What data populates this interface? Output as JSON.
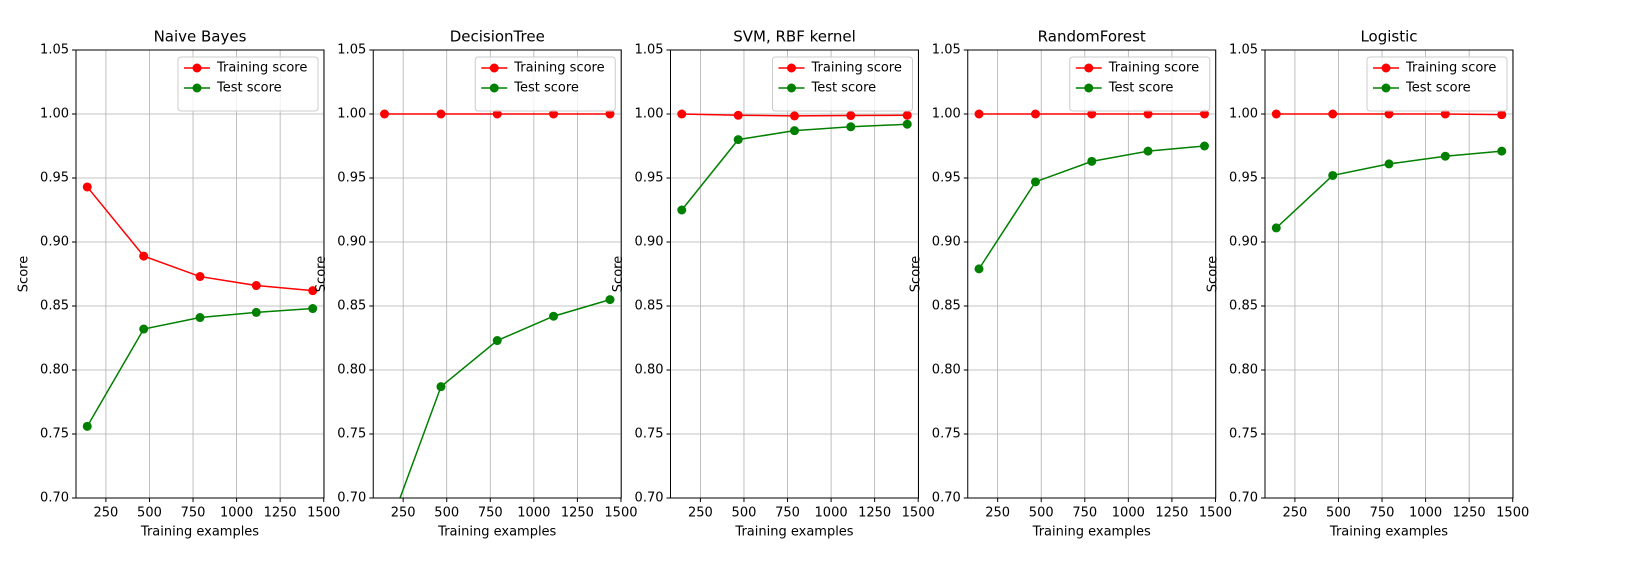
{
  "chart_data": [
    {
      "type": "line",
      "title": "Naive Bayes",
      "xlabel": "Training examples",
      "ylabel": "Score",
      "x": [
        143,
        467,
        790,
        1113,
        1437
      ],
      "series": [
        {
          "name": "Training score",
          "color": "#ff0000",
          "values": [
            0.943,
            0.889,
            0.873,
            0.866,
            0.862
          ]
        },
        {
          "name": "Test score",
          "color": "#008000",
          "values": [
            0.756,
            0.832,
            0.841,
            0.845,
            0.848
          ]
        }
      ],
      "xlim": [
        78.35,
        1501.65
      ],
      "ylim": [
        0.7,
        1.05
      ],
      "xticks": [
        250,
        500,
        750,
        1000,
        1250,
        1500
      ],
      "yticks": [
        {
          "value": 0.7,
          "label": "0.70"
        },
        0.75,
        {
          "value": 0.8,
          "label": "0.80"
        },
        0.85,
        {
          "value": 0.9,
          "label": "0.90"
        },
        0.95,
        {
          "value": 1.0,
          "label": "1.00"
        },
        1.05
      ],
      "grid": true,
      "legend": "upper right"
    },
    {
      "type": "line",
      "title": "DecisionTree",
      "xlabel": "Training examples",
      "ylabel": "Score",
      "x": [
        143,
        467,
        790,
        1113,
        1437
      ],
      "series": [
        {
          "name": "Training score",
          "color": "#ff0000",
          "values": [
            1.0,
            1.0,
            1.0,
            1.0,
            1.0
          ]
        },
        {
          "name": "Test score",
          "color": "#008000",
          "values": [
            0.667,
            0.787,
            0.823,
            0.842,
            0.855
          ]
        }
      ],
      "xlim": [
        78.35,
        1501.65
      ],
      "ylim": [
        0.7,
        1.05
      ],
      "xticks": [
        250,
        500,
        750,
        1000,
        1250,
        1500
      ],
      "yticks": [
        {
          "value": 0.7,
          "label": "0.70"
        },
        0.75,
        {
          "value": 0.8,
          "label": "0.80"
        },
        0.85,
        {
          "value": 0.9,
          "label": "0.90"
        },
        0.95,
        {
          "value": 1.0,
          "label": "1.00"
        },
        1.05
      ],
      "grid": true,
      "legend": "upper right"
    },
    {
      "type": "line",
      "title": "SVM, RBF kernel",
      "xlabel": "Training examples",
      "ylabel": "Score",
      "x": [
        143,
        467,
        790,
        1113,
        1437
      ],
      "series": [
        {
          "name": "Training score",
          "color": "#ff0000",
          "values": [
            1.0,
            0.999,
            0.9985,
            0.9988,
            0.999
          ]
        },
        {
          "name": "Test score",
          "color": "#008000",
          "values": [
            0.925,
            0.98,
            0.987,
            0.99,
            0.992
          ]
        }
      ],
      "xlim": [
        78.35,
        1501.65
      ],
      "ylim": [
        0.7,
        1.05
      ],
      "xticks": [
        250,
        500,
        750,
        1000,
        1250,
        1500
      ],
      "yticks": [
        {
          "value": 0.7,
          "label": "0.70"
        },
        0.75,
        {
          "value": 0.8,
          "label": "0.80"
        },
        0.85,
        {
          "value": 0.9,
          "label": "0.90"
        },
        0.95,
        {
          "value": 1.0,
          "label": "1.00"
        },
        1.05
      ],
      "grid": true,
      "legend": "upper right"
    },
    {
      "type": "line",
      "title": "RandomForest",
      "xlabel": "Training examples",
      "ylabel": "Score",
      "x": [
        143,
        467,
        790,
        1113,
        1437
      ],
      "series": [
        {
          "name": "Training score",
          "color": "#ff0000",
          "values": [
            1.0,
            1.0,
            1.0,
            1.0,
            1.0
          ]
        },
        {
          "name": "Test score",
          "color": "#008000",
          "values": [
            0.879,
            0.947,
            0.963,
            0.971,
            0.975
          ]
        }
      ],
      "xlim": [
        78.35,
        1501.65
      ],
      "ylim": [
        0.7,
        1.05
      ],
      "xticks": [
        250,
        500,
        750,
        1000,
        1250,
        1500
      ],
      "yticks": [
        {
          "value": 0.7,
          "label": "0.70"
        },
        0.75,
        {
          "value": 0.8,
          "label": "0.80"
        },
        0.85,
        {
          "value": 0.9,
          "label": "0.90"
        },
        0.95,
        {
          "value": 1.0,
          "label": "1.00"
        },
        1.05
      ],
      "grid": true,
      "legend": "upper right"
    },
    {
      "type": "line",
      "title": "Logistic",
      "xlabel": "Training examples",
      "ylabel": "Score",
      "x": [
        143,
        467,
        790,
        1113,
        1437
      ],
      "series": [
        {
          "name": "Training score",
          "color": "#ff0000",
          "values": [
            1.0,
            1.0,
            1.0,
            1.0,
            0.9995
          ]
        },
        {
          "name": "Test score",
          "color": "#008000",
          "values": [
            0.911,
            0.952,
            0.961,
            0.967,
            0.971
          ]
        }
      ],
      "xlim": [
        78.35,
        1501.65
      ],
      "ylim": [
        0.7,
        1.05
      ],
      "xticks": [
        250,
        500,
        750,
        1000,
        1250,
        1500
      ],
      "yticks": [
        {
          "value": 0.7,
          "label": "0.70"
        },
        0.75,
        {
          "value": 0.8,
          "label": "0.80"
        },
        0.85,
        {
          "value": 0.9,
          "label": "0.90"
        },
        0.95,
        {
          "value": 1.0,
          "label": "1.00"
        },
        1.05
      ],
      "grid": true,
      "legend": "upper right"
    }
  ]
}
